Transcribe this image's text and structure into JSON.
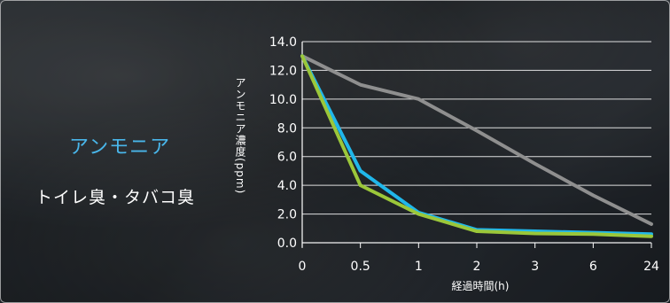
{
  "panel": {
    "title": "アンモニア",
    "subtitle": "トイレ臭・タバコ臭"
  },
  "chart_data": {
    "type": "line",
    "title": "",
    "xlabel": "経過時間(h)",
    "ylabel": "アンモニア濃度(ppm)",
    "categories": [
      "0",
      "0.5",
      "1",
      "2",
      "3",
      "6",
      "24"
    ],
    "ylim": [
      0,
      14
    ],
    "yticks": [
      "0.0",
      "2.0",
      "4.0",
      "6.0",
      "8.0",
      "10.0",
      "12.0",
      "14.0"
    ],
    "grid": true,
    "series": [
      {
        "values": [
          13.0,
          11.0,
          10.0,
          7.8,
          5.5,
          3.3,
          1.3
        ],
        "color": "#8f8f8f"
      },
      {
        "values": [
          13.0,
          5.0,
          2.1,
          0.9,
          0.8,
          0.7,
          0.6
        ],
        "color": "#20b7ea"
      },
      {
        "values": [
          13.0,
          4.0,
          2.0,
          0.8,
          0.65,
          0.6,
          0.45
        ],
        "color": "#9bc73a"
      }
    ]
  }
}
